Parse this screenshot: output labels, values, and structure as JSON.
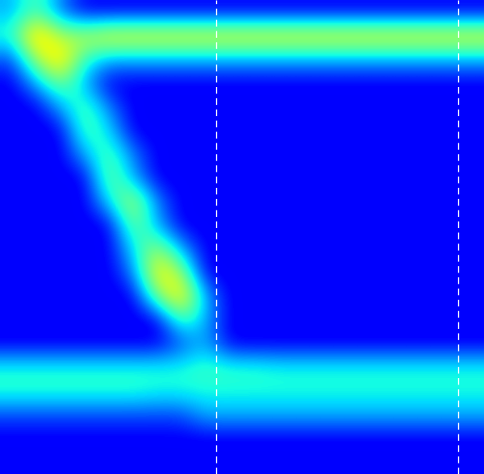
{
  "chart_data": {
    "type": "heatmap",
    "tick_labels": false,
    "xlim": [
      0,
      20
    ],
    "ylim": [
      20,
      0
    ],
    "color_range": [
      0,
      1
    ],
    "vlines": [
      8.93,
      18.93
    ],
    "cells": [
      [
        0.3,
        0.45,
        0.25,
        0.12,
        0.12,
        0.12,
        0.12,
        0.12,
        0.12,
        0.12,
        0.12,
        0.12,
        0.12,
        0.12,
        0.12,
        0.12,
        0.12,
        0.12,
        0.12,
        0.12
      ],
      [
        0.4,
        0.75,
        0.55,
        0.58,
        0.65,
        0.65,
        0.65,
        0.65,
        0.65,
        0.65,
        0.65,
        0.65,
        0.65,
        0.65,
        0.65,
        0.65,
        0.65,
        0.65,
        0.65,
        0.65
      ],
      [
        0.2,
        0.55,
        0.72,
        0.4,
        0.3,
        0.3,
        0.3,
        0.3,
        0.3,
        0.3,
        0.3,
        0.3,
        0.3,
        0.3,
        0.3,
        0.3,
        0.3,
        0.3,
        0.3,
        0.3
      ],
      [
        0.11,
        0.3,
        0.5,
        0.3,
        0.11,
        0.11,
        0.11,
        0.11,
        0.11,
        0.11,
        0.11,
        0.11,
        0.11,
        0.11,
        0.11,
        0.11,
        0.11,
        0.11,
        0.11,
        0.11
      ],
      [
        0.11,
        0.11,
        0.3,
        0.45,
        0.25,
        0.11,
        0.11,
        0.11,
        0.11,
        0.11,
        0.11,
        0.11,
        0.11,
        0.11,
        0.11,
        0.11,
        0.11,
        0.11,
        0.11,
        0.11
      ],
      [
        0.11,
        0.11,
        0.11,
        0.45,
        0.35,
        0.11,
        0.11,
        0.11,
        0.11,
        0.11,
        0.11,
        0.11,
        0.11,
        0.11,
        0.11,
        0.11,
        0.11,
        0.11,
        0.11,
        0.11
      ],
      [
        0.11,
        0.11,
        0.11,
        0.3,
        0.45,
        0.25,
        0.11,
        0.11,
        0.11,
        0.11,
        0.11,
        0.11,
        0.11,
        0.11,
        0.11,
        0.11,
        0.11,
        0.11,
        0.11,
        0.11
      ],
      [
        0.11,
        0.11,
        0.11,
        0.11,
        0.5,
        0.3,
        0.11,
        0.11,
        0.11,
        0.11,
        0.11,
        0.11,
        0.11,
        0.11,
        0.11,
        0.11,
        0.11,
        0.11,
        0.11,
        0.11
      ],
      [
        0.11,
        0.11,
        0.11,
        0.11,
        0.35,
        0.58,
        0.25,
        0.11,
        0.11,
        0.11,
        0.11,
        0.11,
        0.11,
        0.11,
        0.11,
        0.11,
        0.11,
        0.11,
        0.11,
        0.11
      ],
      [
        0.11,
        0.11,
        0.11,
        0.11,
        0.11,
        0.5,
        0.3,
        0.11,
        0.11,
        0.11,
        0.11,
        0.11,
        0.11,
        0.11,
        0.11,
        0.11,
        0.11,
        0.11,
        0.11,
        0.11
      ],
      [
        0.11,
        0.11,
        0.11,
        0.11,
        0.11,
        0.35,
        0.55,
        0.3,
        0.11,
        0.11,
        0.11,
        0.11,
        0.11,
        0.11,
        0.11,
        0.11,
        0.11,
        0.11,
        0.11,
        0.11
      ],
      [
        0.11,
        0.11,
        0.11,
        0.11,
        0.11,
        0.25,
        0.68,
        0.55,
        0.11,
        0.11,
        0.11,
        0.11,
        0.11,
        0.11,
        0.11,
        0.11,
        0.11,
        0.11,
        0.11,
        0.11
      ],
      [
        0.11,
        0.11,
        0.11,
        0.11,
        0.11,
        0.11,
        0.5,
        0.7,
        0.3,
        0.11,
        0.11,
        0.11,
        0.11,
        0.11,
        0.11,
        0.11,
        0.11,
        0.11,
        0.11,
        0.11
      ],
      [
        0.11,
        0.11,
        0.11,
        0.11,
        0.11,
        0.11,
        0.11,
        0.45,
        0.3,
        0.11,
        0.11,
        0.11,
        0.11,
        0.11,
        0.11,
        0.11,
        0.11,
        0.11,
        0.11,
        0.11
      ],
      [
        0.11,
        0.11,
        0.11,
        0.11,
        0.11,
        0.11,
        0.11,
        0.2,
        0.3,
        0.11,
        0.11,
        0.11,
        0.11,
        0.11,
        0.11,
        0.11,
        0.11,
        0.11,
        0.11,
        0.11
      ],
      [
        0.38,
        0.38,
        0.38,
        0.38,
        0.38,
        0.38,
        0.38,
        0.38,
        0.42,
        0.4,
        0.4,
        0.38,
        0.38,
        0.38,
        0.38,
        0.38,
        0.38,
        0.38,
        0.38,
        0.38
      ],
      [
        0.4,
        0.4,
        0.4,
        0.4,
        0.4,
        0.4,
        0.38,
        0.38,
        0.38,
        0.38,
        0.38,
        0.38,
        0.38,
        0.38,
        0.38,
        0.38,
        0.38,
        0.38,
        0.38,
        0.38
      ],
      [
        0.2,
        0.2,
        0.2,
        0.2,
        0.2,
        0.2,
        0.2,
        0.2,
        0.3,
        0.3,
        0.3,
        0.3,
        0.3,
        0.3,
        0.3,
        0.3,
        0.3,
        0.3,
        0.3,
        0.3
      ],
      [
        0.11,
        0.11,
        0.11,
        0.11,
        0.11,
        0.11,
        0.11,
        0.11,
        0.11,
        0.11,
        0.11,
        0.11,
        0.11,
        0.11,
        0.11,
        0.11,
        0.11,
        0.11,
        0.11,
        0.11
      ],
      [
        0.11,
        0.11,
        0.11,
        0.11,
        0.11,
        0.11,
        0.11,
        0.11,
        0.11,
        0.11,
        0.11,
        0.11,
        0.11,
        0.11,
        0.11,
        0.11,
        0.11,
        0.11,
        0.11,
        0.11
      ]
    ]
  }
}
